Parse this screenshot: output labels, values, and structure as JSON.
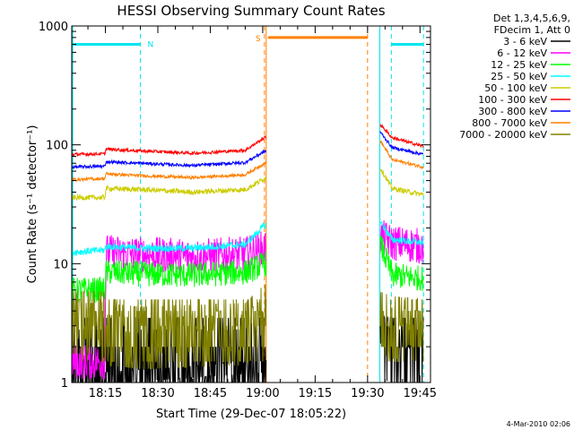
{
  "chart_data": {
    "type": "line",
    "title": "HESSI Observing Summary Count Rates",
    "xlabel": "Start Time (29-Dec-07 18:05:22)",
    "ylabel": "Count Rate (s⁻¹ detector⁻¹)",
    "x_unit": "minutes after 18:00 UT",
    "xlim": [
      5.37,
      108
    ],
    "ylim": [
      1,
      1000
    ],
    "y_scale": "log",
    "x_ticks": [
      {
        "value": 15,
        "label": "18:15"
      },
      {
        "value": 30,
        "label": "18:30"
      },
      {
        "value": 45,
        "label": "18:45"
      },
      {
        "value": 60,
        "label": "19:00"
      },
      {
        "value": 75,
        "label": "19:15"
      },
      {
        "value": 90,
        "label": "19:30"
      },
      {
        "value": 105,
        "label": "19:45"
      }
    ],
    "y_ticks": [
      {
        "value": 1,
        "label": "1"
      },
      {
        "value": 10,
        "label": "10"
      },
      {
        "value": 100,
        "label": "100"
      },
      {
        "value": 1000,
        "label": "1000"
      }
    ],
    "legend_header": [
      "Det 1,3,4,5,6,9,",
      "FDecim 1, Att 0"
    ],
    "legend_position": "right",
    "timestamp": "4-Mar-2010 02:06",
    "flags": [
      {
        "label": "N",
        "color": "#00e5ee",
        "level": 700,
        "segments": [
          [
            5.4,
            25
          ],
          [
            96.8,
            106
          ]
        ],
        "markers": [
          25,
          96.8,
          106
        ]
      },
      {
        "label": "S",
        "color": "#ff8000",
        "level": 800,
        "segments": [
          [
            61.5,
            90
          ]
        ],
        "markers": [
          60.5,
          90
        ]
      }
    ],
    "gaps": [
      [
        61,
        93.5
      ]
    ],
    "series": [
      {
        "name": "3 - 6 keV",
        "color": "#000000",
        "values": [
          [
            5.4,
            1
          ],
          [
            60.5,
            1.3
          ],
          [
            93.5,
            3.2
          ],
          [
            97,
            3
          ],
          [
            106,
            2.8
          ]
        ]
      },
      {
        "name": "6 - 12 keV",
        "color": "#ff00ff",
        "values": [
          [
            5.4,
            1.5
          ],
          [
            14.8,
            1.5
          ],
          [
            15.2,
            12.5
          ],
          [
            25,
            12
          ],
          [
            40,
            11.5
          ],
          [
            55,
            12
          ],
          [
            60.5,
            13.5
          ],
          [
            93.5,
            17
          ],
          [
            97,
            15
          ],
          [
            106,
            14
          ]
        ]
      },
      {
        "name": "12 - 25 keV",
        "color": "#00ff00",
        "values": [
          [
            5.4,
            6
          ],
          [
            14.8,
            6
          ],
          [
            15.2,
            8.5
          ],
          [
            25,
            8.2
          ],
          [
            40,
            8
          ],
          [
            55,
            8.5
          ],
          [
            60.5,
            10
          ],
          [
            93.5,
            15
          ],
          [
            97,
            8
          ],
          [
            106,
            7.5
          ]
        ]
      },
      {
        "name": "25 - 50 keV",
        "color": "#00ffff",
        "values": [
          [
            5.4,
            12.5
          ],
          [
            14.8,
            13
          ],
          [
            15.2,
            14
          ],
          [
            25,
            13.5
          ],
          [
            40,
            13.5
          ],
          [
            55,
            14.5
          ],
          [
            60.5,
            21
          ],
          [
            93.5,
            23
          ],
          [
            97,
            16
          ],
          [
            106,
            15
          ]
        ]
      },
      {
        "name": "50 - 100 keV",
        "color": "#cccc00",
        "values": [
          [
            5.4,
            36
          ],
          [
            14.8,
            36
          ],
          [
            15.2,
            43
          ],
          [
            25,
            42
          ],
          [
            40,
            40
          ],
          [
            55,
            42
          ],
          [
            60.5,
            52
          ],
          [
            93.5,
            65
          ],
          [
            97,
            43
          ],
          [
            106,
            38
          ]
        ]
      },
      {
        "name": "100 - 300 keV",
        "color": "#ff0000",
        "values": [
          [
            5.4,
            83
          ],
          [
            14.8,
            84
          ],
          [
            15.2,
            92
          ],
          [
            25,
            89
          ],
          [
            40,
            85
          ],
          [
            55,
            90
          ],
          [
            60.5,
            115
          ],
          [
            93.5,
            150
          ],
          [
            97,
            115
          ],
          [
            106,
            97
          ]
        ]
      },
      {
        "name": "300 - 800 keV",
        "color": "#0000ff",
        "values": [
          [
            5.4,
            65
          ],
          [
            14.8,
            66
          ],
          [
            15.2,
            72
          ],
          [
            25,
            70
          ],
          [
            40,
            67
          ],
          [
            55,
            71
          ],
          [
            60.5,
            88
          ],
          [
            93.5,
            130
          ],
          [
            97,
            95
          ],
          [
            106,
            83
          ]
        ]
      },
      {
        "name": "800 - 7000 keV",
        "color": "#ff8000",
        "values": [
          [
            5.4,
            51
          ],
          [
            14.8,
            52
          ],
          [
            15.2,
            57
          ],
          [
            25,
            55
          ],
          [
            40,
            53
          ],
          [
            55,
            56
          ],
          [
            60.5,
            70
          ],
          [
            93.5,
            110
          ],
          [
            97,
            75
          ],
          [
            106,
            65
          ]
        ]
      },
      {
        "name": "7000 - 20000 keV",
        "color": "#808000",
        "values": [
          [
            5.4,
            3.5
          ],
          [
            14.8,
            3.5
          ],
          [
            15.2,
            2.8
          ],
          [
            25,
            2.6
          ],
          [
            40,
            2.7
          ],
          [
            55,
            2.8
          ],
          [
            60.5,
            4
          ],
          [
            93.5,
            3.5
          ],
          [
            97,
            3.2
          ],
          [
            106,
            3
          ]
        ]
      }
    ]
  }
}
